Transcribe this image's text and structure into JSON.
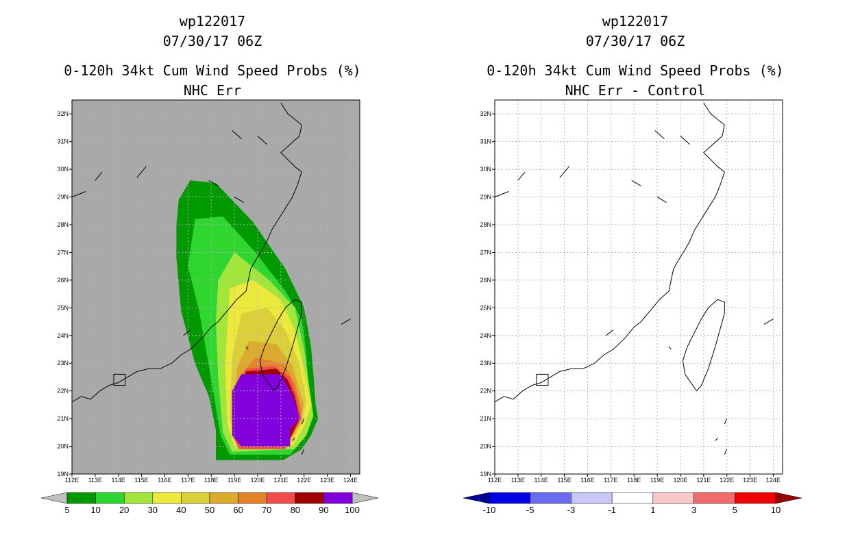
{
  "panels": [
    {
      "storm_id": "wp122017",
      "datetime": "07/30/17 06Z",
      "product": "0-120h 34kt Cum Wind Speed Probs (%)",
      "subtitle": "NHC Err",
      "background": "#a9a9a9"
    },
    {
      "storm_id": "wp122017",
      "datetime": "07/30/17 06Z",
      "product": "0-120h 34kt Cum Wind Speed Probs (%)",
      "subtitle": "NHC Err - Control",
      "background": "#ffffff"
    }
  ],
  "chart_data": [
    {
      "type": "heatmap",
      "title": "0-120h 34kt Cum Wind Speed Probs (%) — NHC Err",
      "x_axis": {
        "ticks": [
          "112E",
          "113E",
          "114E",
          "115E",
          "116E",
          "117E",
          "118E",
          "119E",
          "120E",
          "121E",
          "122E",
          "123E",
          "124E"
        ],
        "range": [
          112,
          124.4
        ]
      },
      "y_axis": {
        "ticks": [
          "19N",
          "20N",
          "21N",
          "22N",
          "23N",
          "24N",
          "25N",
          "26N",
          "27N",
          "28N",
          "29N",
          "30N",
          "31N",
          "32N"
        ],
        "range": [
          19,
          32.5
        ]
      },
      "colorbar": {
        "labels": [
          "5",
          "10",
          "20",
          "30",
          "40",
          "50",
          "60",
          "70",
          "80",
          "90",
          "100"
        ],
        "colors": [
          "#009a00",
          "#30d630",
          "#a2e63c",
          "#ece83c",
          "#dcd03a",
          "#dcaa2e",
          "#e4822a",
          "#f04c4c",
          "#a00000",
          "#8200dc"
        ],
        "extend_colors": [
          "#c0c0c0",
          "#c0c0c0"
        ]
      },
      "contours": [
        {
          "level": 5,
          "color": "#009a00",
          "points": [
            [
              116.6,
              28.9
            ],
            [
              117.1,
              29.6
            ],
            [
              118.2,
              29.5
            ],
            [
              119.8,
              28.1
            ],
            [
              121.2,
              26.4
            ],
            [
              122.0,
              25.0
            ],
            [
              122.3,
              23.6
            ],
            [
              122.4,
              22.6
            ],
            [
              122.5,
              21.5
            ],
            [
              122.6,
              21.0
            ],
            [
              122.3,
              20.4
            ],
            [
              121.9,
              19.9
            ],
            [
              121.1,
              19.5
            ],
            [
              118.2,
              19.5
            ],
            [
              118.2,
              20.6
            ],
            [
              117.9,
              21.8
            ],
            [
              117.3,
              23.0
            ],
            [
              116.7,
              24.9
            ],
            [
              116.5,
              26.8
            ],
            [
              116.5,
              28.0
            ]
          ]
        },
        {
          "level": 10,
          "color": "#30d630",
          "points": [
            [
              117.3,
              28.2
            ],
            [
              118.5,
              28.3
            ],
            [
              119.9,
              27.0
            ],
            [
              121.2,
              25.6
            ],
            [
              121.9,
              24.6
            ],
            [
              122.1,
              23.3
            ],
            [
              122.2,
              22.0
            ],
            [
              122.4,
              21.1
            ],
            [
              122.0,
              20.3
            ],
            [
              121.4,
              19.7
            ],
            [
              118.8,
              19.7
            ],
            [
              118.4,
              20.4
            ],
            [
              118.2,
              21.4
            ],
            [
              117.9,
              22.9
            ],
            [
              117.5,
              24.8
            ],
            [
              117.0,
              26.5
            ]
          ]
        },
        {
          "level": 20,
          "color": "#a2e63c",
          "points": [
            [
              118.3,
              26.0
            ],
            [
              119.0,
              27.0
            ],
            [
              120.5,
              26.0
            ],
            [
              121.6,
              25.0
            ],
            [
              122.0,
              23.5
            ],
            [
              122.2,
              22.3
            ],
            [
              122.4,
              21.1
            ],
            [
              122.1,
              20.4
            ],
            [
              121.6,
              19.9
            ],
            [
              118.9,
              19.8
            ],
            [
              118.5,
              20.5
            ],
            [
              118.3,
              22.5
            ],
            [
              118.2,
              24.5
            ]
          ]
        },
        {
          "level": 30,
          "color": "#ece83c",
          "points": [
            [
              118.8,
              25.7
            ],
            [
              119.8,
              26.0
            ],
            [
              121.0,
              25.3
            ],
            [
              121.6,
              24.2
            ],
            [
              122.0,
              22.8
            ],
            [
              122.3,
              21.5
            ],
            [
              122.0,
              20.7
            ],
            [
              121.5,
              20.0
            ],
            [
              119.0,
              20.0
            ],
            [
              118.7,
              20.8
            ],
            [
              118.6,
              23.0
            ]
          ]
        },
        {
          "level": 40,
          "color": "#dcd03a",
          "points": [
            [
              119.3,
              24.8
            ],
            [
              120.4,
              25.0
            ],
            [
              121.2,
              24.2
            ],
            [
              121.8,
              23.0
            ],
            [
              122.1,
              21.6
            ],
            [
              121.9,
              20.8
            ],
            [
              121.4,
              20.1
            ],
            [
              119.1,
              20.1
            ],
            [
              118.8,
              21.0
            ],
            [
              118.9,
              23.2
            ]
          ]
        },
        {
          "level": 50,
          "color": "#dcaa2e",
          "points": [
            [
              119.6,
              23.8
            ],
            [
              120.8,
              23.7
            ],
            [
              121.5,
              22.9
            ],
            [
              122.0,
              21.5
            ],
            [
              121.8,
              20.8
            ],
            [
              121.3,
              20.2
            ],
            [
              119.2,
              20.2
            ],
            [
              118.9,
              21.0
            ],
            [
              119.1,
              22.8
            ]
          ]
        },
        {
          "level": 60,
          "color": "#e4822a",
          "points": [
            [
              119.9,
              23.2
            ],
            [
              121.1,
              23.0
            ],
            [
              121.6,
              22.3
            ],
            [
              121.9,
              21.3
            ],
            [
              121.6,
              20.5
            ],
            [
              121.2,
              20.1
            ],
            [
              119.3,
              20.1
            ],
            [
              118.9,
              21.2
            ],
            [
              119.2,
              22.5
            ]
          ]
        },
        {
          "level": 70,
          "color": "#f04c4c",
          "points": [
            [
              119.5,
              22.8
            ],
            [
              120.7,
              22.9
            ],
            [
              121.4,
              22.5
            ],
            [
              121.7,
              21.8
            ],
            [
              121.9,
              21.0
            ],
            [
              121.5,
              20.4
            ],
            [
              121.2,
              19.9
            ],
            [
              119.2,
              19.9
            ],
            [
              118.9,
              20.4
            ],
            [
              119.0,
              21.8
            ]
          ]
        },
        {
          "level": 80,
          "color": "#a00000",
          "points": [
            [
              119.5,
              22.7
            ],
            [
              120.8,
              22.8
            ],
            [
              121.3,
              22.4
            ],
            [
              121.6,
              21.8
            ],
            [
              121.8,
              21.0
            ],
            [
              121.4,
              20.3
            ],
            [
              119.3,
              20.0
            ],
            [
              119.0,
              20.5
            ],
            [
              119.1,
              21.7
            ]
          ]
        },
        {
          "level": 90,
          "color": "#8200dc",
          "points": [
            [
              119.3,
              22.6
            ],
            [
              121.0,
              22.6
            ],
            [
              121.4,
              22.0
            ],
            [
              121.6,
              21.6
            ],
            [
              121.8,
              21.0
            ],
            [
              121.4,
              20.6
            ],
            [
              121.4,
              20.0
            ],
            [
              119.3,
              20.0
            ],
            [
              118.9,
              20.4
            ],
            [
              118.9,
              22.0
            ]
          ]
        }
      ]
    },
    {
      "type": "heatmap",
      "title": "0-120h 34kt Cum Wind Speed Probs (%) — NHC Err - Control",
      "x_axis": {
        "ticks": [
          "112E",
          "113E",
          "114E",
          "115E",
          "116E",
          "117E",
          "118E",
          "119E",
          "120E",
          "121E",
          "122E",
          "123E",
          "124E"
        ],
        "range": [
          112,
          124.4
        ]
      },
      "y_axis": {
        "ticks": [
          "19N",
          "20N",
          "21N",
          "22N",
          "23N",
          "24N",
          "25N",
          "26N",
          "27N",
          "28N",
          "29N",
          "30N",
          "31N",
          "32N"
        ],
        "range": [
          19,
          32.5
        ]
      },
      "colorbar": {
        "labels": [
          "-10",
          "-5",
          "-3",
          "-1",
          "1",
          "3",
          "5",
          "10"
        ],
        "colors": [
          "#0000e6",
          "#6c6cf0",
          "#c8c8f8",
          "#ffffff",
          "#f8c8c8",
          "#f06c6c",
          "#f00000"
        ],
        "extend_colors": [
          "#000096",
          "#960000"
        ]
      },
      "contours": []
    }
  ],
  "map": {
    "coast_china": [
      [
        112.0,
        21.6
      ],
      [
        112.4,
        21.8
      ],
      [
        112.8,
        21.7
      ],
      [
        113.2,
        22.0
      ],
      [
        113.6,
        22.2
      ],
      [
        114.0,
        22.3
      ],
      [
        114.4,
        22.5
      ],
      [
        114.8,
        22.7
      ],
      [
        115.3,
        22.8
      ],
      [
        115.8,
        22.8
      ],
      [
        116.3,
        23.0
      ],
      [
        116.7,
        23.3
      ],
      [
        117.1,
        23.5
      ],
      [
        117.6,
        23.9
      ],
      [
        118.0,
        24.3
      ],
      [
        118.3,
        24.5
      ],
      [
        118.7,
        24.9
      ],
      [
        119.1,
        25.3
      ],
      [
        119.5,
        25.6
      ],
      [
        119.6,
        26.0
      ],
      [
        119.7,
        26.4
      ],
      [
        119.9,
        26.7
      ],
      [
        120.2,
        27.1
      ],
      [
        120.4,
        27.4
      ],
      [
        120.6,
        27.8
      ],
      [
        120.9,
        28.2
      ],
      [
        121.2,
        28.6
      ],
      [
        121.5,
        29.0
      ],
      [
        121.7,
        29.4
      ],
      [
        121.9,
        29.9
      ],
      [
        121.6,
        30.1
      ],
      [
        121.0,
        30.6
      ],
      [
        121.4,
        30.9
      ],
      [
        121.8,
        31.2
      ],
      [
        121.9,
        31.6
      ],
      [
        121.3,
        32.0
      ],
      [
        121.0,
        32.4
      ]
    ],
    "taiwan": [
      [
        121.9,
        25.2
      ],
      [
        121.6,
        25.3
      ],
      [
        121.2,
        25.0
      ],
      [
        120.9,
        24.6
      ],
      [
        120.6,
        24.1
      ],
      [
        120.3,
        23.6
      ],
      [
        120.1,
        23.1
      ],
      [
        120.2,
        22.6
      ],
      [
        120.7,
        22.0
      ],
      [
        120.9,
        22.2
      ],
      [
        121.2,
        22.8
      ],
      [
        121.5,
        23.6
      ],
      [
        121.7,
        24.2
      ],
      [
        121.9,
        24.8
      ]
    ],
    "hainan_hk_box": [
      [
        113.8,
        22.2
      ],
      [
        114.3,
        22.2
      ],
      [
        114.3,
        22.6
      ],
      [
        113.8,
        22.6
      ]
    ],
    "islands": [
      [
        [
          116.8,
          24.0
        ],
        [
          117.1,
          24.2
        ]
      ],
      [
        [
          119.5,
          23.6
        ],
        [
          119.6,
          23.5
        ]
      ],
      [
        [
          121.5,
          20.2
        ],
        [
          121.6,
          20.3
        ]
      ],
      [
        [
          121.9,
          20.8
        ],
        [
          122.0,
          21.0
        ]
      ],
      [
        [
          121.9,
          19.7
        ],
        [
          122.0,
          19.9
        ]
      ],
      [
        [
          123.6,
          24.4
        ],
        [
          124.0,
          24.6
        ]
      ],
      [
        [
          114.8,
          29.7
        ],
        [
          115.2,
          30.1
        ]
      ],
      [
        [
          117.9,
          29.6
        ],
        [
          118.3,
          29.4
        ]
      ],
      [
        [
          119.0,
          29.0
        ],
        [
          119.4,
          28.8
        ]
      ],
      [
        [
          118.9,
          31.4
        ],
        [
          119.3,
          31.1
        ]
      ],
      [
        [
          120.0,
          31.2
        ],
        [
          120.4,
          30.9
        ]
      ],
      [
        [
          112.0,
          29.0
        ],
        [
          112.6,
          29.2
        ]
      ],
      [
        [
          113.0,
          29.6
        ],
        [
          113.3,
          29.9
        ]
      ]
    ]
  }
}
